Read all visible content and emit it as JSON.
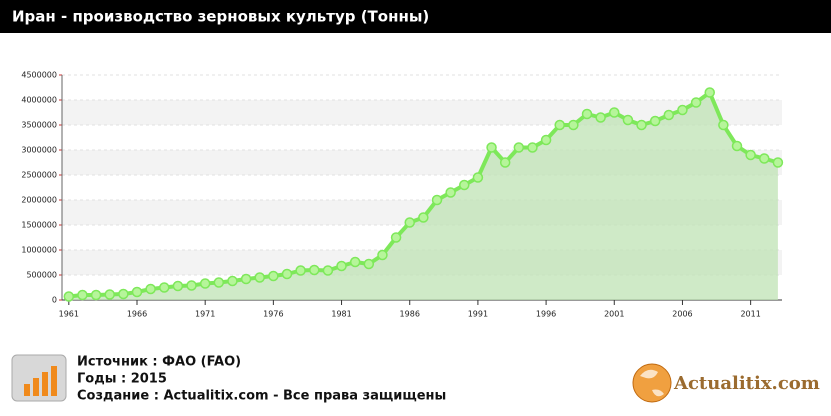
{
  "chart_data": {
    "type": "line",
    "title": "Иран - производство зерновых культур (Тонны)",
    "x": [
      1961,
      1962,
      1963,
      1964,
      1965,
      1966,
      1967,
      1968,
      1969,
      1970,
      1971,
      1972,
      1973,
      1974,
      1975,
      1976,
      1977,
      1978,
      1979,
      1980,
      1981,
      1982,
      1983,
      1984,
      1985,
      1986,
      1987,
      1988,
      1989,
      1990,
      1991,
      1992,
      1993,
      1994,
      1995,
      1996,
      1997,
      1998,
      1999,
      2000,
      2001,
      2002,
      2003,
      2004,
      2005,
      2006,
      2007,
      2008,
      2009,
      2010,
      2011,
      2012,
      2013
    ],
    "series": [
      {
        "color": "#7ee85a",
        "values": [
          70000,
          100000,
          100000,
          110000,
          120000,
          160000,
          220000,
          250000,
          280000,
          290000,
          330000,
          350000,
          380000,
          420000,
          450000,
          480000,
          520000,
          590000,
          600000,
          590000,
          680000,
          760000,
          720000,
          900000,
          1250000,
          1550000,
          1650000,
          2000000,
          2150000,
          2300000,
          2450000,
          3050000,
          2750000,
          3050000,
          3050000,
          3200000,
          3500000,
          3500000,
          3720000,
          3650000,
          3750000,
          3600000,
          3500000,
          3580000,
          3700000,
          3800000,
          3950000,
          4150000,
          3500000,
          3080000,
          2900000,
          2830000,
          2750000
        ]
      }
    ],
    "xlim": [
      1960.5,
      2013.3
    ],
    "xticks": [
      1961,
      1966,
      1971,
      1976,
      1981,
      1986,
      1991,
      1996,
      2001,
      2006,
      2011
    ],
    "ylim": [
      0,
      4500000
    ],
    "yticks": [
      0,
      500000,
      1000000,
      1500000,
      2000000,
      2500000,
      3000000,
      3500000,
      4000000,
      4500000
    ],
    "grid": true
  },
  "footer": {
    "source": "Источник : ФАО (FAO)",
    "years": "Годы : 2015",
    "created": "Создание : Actualitix.com -  Все права защищены",
    "logo": "Actualitix.com"
  }
}
